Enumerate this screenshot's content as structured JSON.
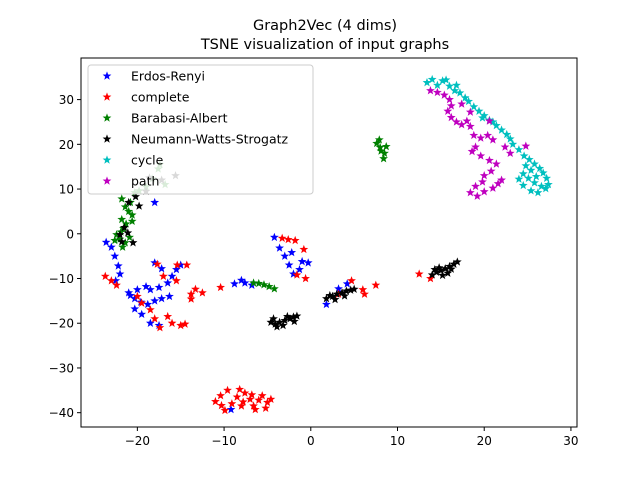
{
  "chart_data": {
    "type": "scatter",
    "title": "Graph2Vec (4 dims)",
    "subtitle": "TSNE visualization of input graphs",
    "xlabel": "",
    "ylabel": "",
    "xlim": [
      -26.5,
      30.7
    ],
    "ylim": [
      -43.2,
      39.3
    ],
    "xticks": [
      -20,
      -10,
      0,
      10,
      20,
      30
    ],
    "yticks": [
      -40,
      -30,
      -20,
      -10,
      0,
      10,
      20,
      30
    ],
    "xtick_labels": [
      "−20",
      "−10",
      "0",
      "10",
      "20",
      "30"
    ],
    "ytick_labels": [
      "−40",
      "−30",
      "−20",
      "−10",
      "0",
      "10",
      "20",
      "30"
    ],
    "grid": false,
    "legend_position": "top-left",
    "marker": "star",
    "series": [
      {
        "name": "Erdos-Renyi",
        "color": "#0000ff",
        "points": [
          [
            -23.6,
            -1.9
          ],
          [
            -23.0,
            -3.0
          ],
          [
            -22.6,
            -5.0
          ],
          [
            -22.2,
            -7.2
          ],
          [
            -22.0,
            -9.0
          ],
          [
            -22.5,
            -10.5
          ],
          [
            -21.0,
            -13.2
          ],
          [
            -20.3,
            -14.5
          ],
          [
            -19.6,
            -15.3
          ],
          [
            -18.8,
            -15.8
          ],
          [
            -18.0,
            -15.0
          ],
          [
            -17.2,
            -14.5
          ],
          [
            -16.3,
            -14.0
          ],
          [
            -20.8,
            -13.8
          ],
          [
            -20.0,
            -12.5
          ],
          [
            -19.0,
            -11.8
          ],
          [
            -18.5,
            -12.5
          ],
          [
            -17.5,
            -12.0
          ],
          [
            -16.5,
            -11.0
          ],
          [
            -16.0,
            -9.5
          ],
          [
            -15.5,
            -8.0
          ],
          [
            -15.0,
            -7.0
          ],
          [
            -18.0,
            -6.5
          ],
          [
            -17.2,
            -7.8
          ],
          [
            -20.3,
            -16.8
          ],
          [
            -19.5,
            -18.0
          ],
          [
            -18.5,
            -20.0
          ],
          [
            -17.5,
            -20.5
          ],
          [
            -18.0,
            7.0
          ],
          [
            -9.2,
            -39.3
          ],
          [
            -8.8,
            -11.2
          ],
          [
            -8.0,
            -10.4
          ],
          [
            -7.6,
            -11.0
          ],
          [
            -6.8,
            -11.5
          ],
          [
            -4.2,
            -0.8
          ],
          [
            -3.6,
            -3.2
          ],
          [
            -3.0,
            -5.0
          ],
          [
            -2.5,
            -7.0
          ],
          [
            -2.0,
            -9.0
          ],
          [
            -1.3,
            -8.0
          ],
          [
            -1.0,
            -6.2
          ],
          [
            -0.3,
            -6.5
          ],
          [
            -2.2,
            -4.2
          ],
          [
            1.8,
            -15.8
          ],
          [
            4.2,
            -11.2
          ],
          [
            3.2,
            -12.3
          ]
        ]
      },
      {
        "name": "complete",
        "color": "#ff0000",
        "points": [
          [
            -23.7,
            -9.5
          ],
          [
            -23.0,
            -10.5
          ],
          [
            -22.4,
            -11.5
          ],
          [
            -20.0,
            -14.0
          ],
          [
            -19.5,
            -15.5
          ],
          [
            -18.5,
            -17.0
          ],
          [
            -18.0,
            -19.0
          ],
          [
            -17.4,
            -21.0
          ],
          [
            -16.5,
            -18.5
          ],
          [
            -16.0,
            -20.0
          ],
          [
            -15.0,
            -20.5
          ],
          [
            -14.5,
            -20.2
          ],
          [
            -15.5,
            -10.5
          ],
          [
            -13.8,
            -13.5
          ],
          [
            -13.3,
            -12.4
          ],
          [
            -13.8,
            -14.6
          ],
          [
            -12.5,
            -13.2
          ],
          [
            -17.7,
            -6.8
          ],
          [
            -17.0,
            -9.5
          ],
          [
            -15.4,
            -7.0
          ],
          [
            -14.3,
            -7.0
          ],
          [
            -10.4,
            -12.0
          ],
          [
            -11.0,
            -37.5
          ],
          [
            -10.4,
            -36.2
          ],
          [
            -9.6,
            -35.0
          ],
          [
            -10.3,
            -38.4
          ],
          [
            -9.1,
            -38.0
          ],
          [
            -8.5,
            -36.5
          ],
          [
            -8.2,
            -34.8
          ],
          [
            -7.6,
            -35.6
          ],
          [
            -7.0,
            -37.0
          ],
          [
            -6.6,
            -38.5
          ],
          [
            -6.0,
            -37.2
          ],
          [
            -5.6,
            -36.2
          ],
          [
            -5.0,
            -37.7
          ],
          [
            -4.6,
            -37.0
          ],
          [
            -6.4,
            -39.3
          ],
          [
            -5.2,
            -39.0
          ],
          [
            -8.0,
            -38.5
          ],
          [
            -9.9,
            -39.5
          ],
          [
            -6.8,
            -36.0
          ],
          [
            -7.8,
            -37.6
          ],
          [
            -3.3,
            -1.0
          ],
          [
            -2.6,
            -1.3
          ],
          [
            -1.8,
            -1.5
          ],
          [
            -0.8,
            -3.5
          ],
          [
            -0.6,
            -10.0
          ],
          [
            -1.6,
            -9.2
          ],
          [
            3.2,
            -13.5
          ],
          [
            4.7,
            -10.5
          ],
          [
            6.0,
            -12.5
          ],
          [
            6.2,
            -13.5
          ],
          [
            7.5,
            -11.5
          ],
          [
            12.5,
            -9.0
          ],
          [
            13.8,
            -10.0
          ]
        ]
      },
      {
        "name": "Barabasi-Albert",
        "color": "#008000",
        "points": [
          [
            -21.8,
            7.8
          ],
          [
            -21.4,
            6.0
          ],
          [
            -21.0,
            5.0
          ],
          [
            -20.6,
            4.2
          ],
          [
            -21.8,
            3.2
          ],
          [
            -21.3,
            2.2
          ],
          [
            -21.6,
            1.2
          ],
          [
            -22.4,
            -0.2
          ],
          [
            -22.0,
            -1.2
          ],
          [
            -21.4,
            -2.0
          ],
          [
            -20.9,
            -0.8
          ],
          [
            -22.6,
            -1.5
          ],
          [
            -21.9,
            0.4
          ],
          [
            -20.6,
            2.8
          ],
          [
            -21.7,
            -3.0
          ],
          [
            -20.3,
            9.2
          ],
          [
            -19.8,
            9.6
          ],
          [
            -19.0,
            10.5
          ],
          [
            -18.3,
            12.3
          ],
          [
            -17.6,
            14.5
          ],
          [
            -17.4,
            15.5
          ],
          [
            -16.8,
            11.0
          ],
          [
            -20.8,
            7.0
          ],
          [
            -6.6,
            -11.0
          ],
          [
            -6.0,
            -11.1
          ],
          [
            -5.4,
            -11.4
          ],
          [
            -4.8,
            -11.8
          ],
          [
            -4.2,
            -12.3
          ],
          [
            7.6,
            20.2
          ],
          [
            8.0,
            19.3
          ],
          [
            8.5,
            18.0
          ],
          [
            8.4,
            16.8
          ],
          [
            7.9,
            21.0
          ],
          [
            8.7,
            19.5
          ],
          [
            8.1,
            18.5
          ]
        ]
      },
      {
        "name": "Neumann-Watts-Strogatz",
        "color": "#000000",
        "points": [
          [
            -21.0,
            7.0
          ],
          [
            -20.2,
            8.3
          ],
          [
            -19.8,
            6.2
          ],
          [
            -22.0,
            -0.2
          ],
          [
            -21.5,
            1.4
          ],
          [
            -20.5,
            -2.0
          ],
          [
            -21.8,
            -1.8
          ],
          [
            -21.1,
            0.2
          ],
          [
            -19.0,
            9.5
          ],
          [
            -18.6,
            12.5
          ],
          [
            -17.2,
            12.0
          ],
          [
            -15.6,
            13.0
          ],
          [
            -4.6,
            -19.8
          ],
          [
            -4.1,
            -20.2
          ],
          [
            -3.6,
            -19.8
          ],
          [
            -3.0,
            -19.4
          ],
          [
            -2.4,
            -19.0
          ],
          [
            -2.0,
            -18.6
          ],
          [
            -1.6,
            -18.4
          ],
          [
            -4.3,
            -19.0
          ],
          [
            -3.2,
            -20.5
          ],
          [
            -2.7,
            -18.5
          ],
          [
            -1.9,
            -19.6
          ],
          [
            -3.9,
            -20.8
          ],
          [
            1.8,
            -14.5
          ],
          [
            2.5,
            -14.0
          ],
          [
            3.0,
            -13.5
          ],
          [
            3.6,
            -13.2
          ],
          [
            4.1,
            -12.8
          ],
          [
            4.6,
            -12.6
          ],
          [
            5.0,
            -12.4
          ],
          [
            2.2,
            -13.8
          ],
          [
            3.9,
            -13.9
          ],
          [
            2.8,
            -14.7
          ],
          [
            14.0,
            -9.2
          ],
          [
            14.5,
            -8.6
          ],
          [
            15.0,
            -8.2
          ],
          [
            15.5,
            -7.8
          ],
          [
            16.0,
            -7.3
          ],
          [
            16.5,
            -6.8
          ],
          [
            16.9,
            -6.3
          ],
          [
            14.8,
            -7.6
          ],
          [
            15.8,
            -8.8
          ],
          [
            14.3,
            -8.0
          ],
          [
            15.2,
            -9.3
          ],
          [
            16.2,
            -7.9
          ]
        ]
      },
      {
        "name": "cycle",
        "color": "#00bfbf",
        "points": [
          [
            13.4,
            33.8
          ],
          [
            14.0,
            34.5
          ],
          [
            14.6,
            33.2
          ],
          [
            15.2,
            34.2
          ],
          [
            16.0,
            33.0
          ],
          [
            16.6,
            32.0
          ],
          [
            17.2,
            31.5
          ],
          [
            17.8,
            30.4
          ],
          [
            18.2,
            29.6
          ],
          [
            18.8,
            28.4
          ],
          [
            19.4,
            27.4
          ],
          [
            20.0,
            26.4
          ],
          [
            20.6,
            25.4
          ],
          [
            21.4,
            24.2
          ],
          [
            22.0,
            23.2
          ],
          [
            22.6,
            22.2
          ],
          [
            23.0,
            21.2
          ],
          [
            23.3,
            20.0
          ],
          [
            24.0,
            18.8
          ],
          [
            24.6,
            17.4
          ],
          [
            25.2,
            16.6
          ],
          [
            25.8,
            15.6
          ],
          [
            26.4,
            14.6
          ],
          [
            26.8,
            13.6
          ],
          [
            27.2,
            12.4
          ],
          [
            27.4,
            11.0
          ],
          [
            26.6,
            10.6
          ],
          [
            25.8,
            11.4
          ],
          [
            25.1,
            12.4
          ],
          [
            24.5,
            13.4
          ],
          [
            24.0,
            12.2
          ],
          [
            24.5,
            10.8
          ],
          [
            25.4,
            9.6
          ],
          [
            26.2,
            9.2
          ],
          [
            27.1,
            10.1
          ],
          [
            26.0,
            12.8
          ],
          [
            25.4,
            14.2
          ],
          [
            24.8,
            15.2
          ],
          [
            21.0,
            25.0
          ],
          [
            19.8,
            25.9
          ],
          [
            15.6,
            34.4
          ],
          [
            16.8,
            33.2
          ]
        ]
      },
      {
        "name": "path",
        "color": "#bf00bf",
        "points": [
          [
            13.8,
            32.0
          ],
          [
            14.6,
            31.6
          ],
          [
            15.4,
            31.0
          ],
          [
            16.0,
            30.0
          ],
          [
            16.2,
            28.6
          ],
          [
            15.8,
            27.4
          ],
          [
            16.2,
            26.0
          ],
          [
            16.8,
            25.0
          ],
          [
            17.4,
            24.4
          ],
          [
            18.0,
            25.2
          ],
          [
            18.4,
            24.0
          ],
          [
            18.8,
            22.0
          ],
          [
            19.6,
            21.4
          ],
          [
            20.4,
            22.0
          ],
          [
            21.0,
            21.0
          ],
          [
            19.0,
            19.4
          ],
          [
            18.6,
            18.4
          ],
          [
            19.6,
            17.4
          ],
          [
            20.6,
            16.4
          ],
          [
            21.4,
            15.6
          ],
          [
            20.8,
            14.0
          ],
          [
            20.0,
            13.0
          ],
          [
            19.8,
            11.6
          ],
          [
            19.0,
            10.6
          ],
          [
            18.4,
            9.2
          ],
          [
            19.2,
            8.4
          ],
          [
            20.0,
            9.4
          ],
          [
            21.0,
            10.2
          ],
          [
            21.6,
            11.2
          ],
          [
            22.0,
            12.0
          ],
          [
            17.4,
            29.0
          ],
          [
            18.4,
            27.2
          ],
          [
            22.4,
            19.4
          ],
          [
            23.0,
            18.0
          ],
          [
            24.8,
            19.6
          ],
          [
            20.6,
            25.2
          ]
        ]
      }
    ]
  }
}
